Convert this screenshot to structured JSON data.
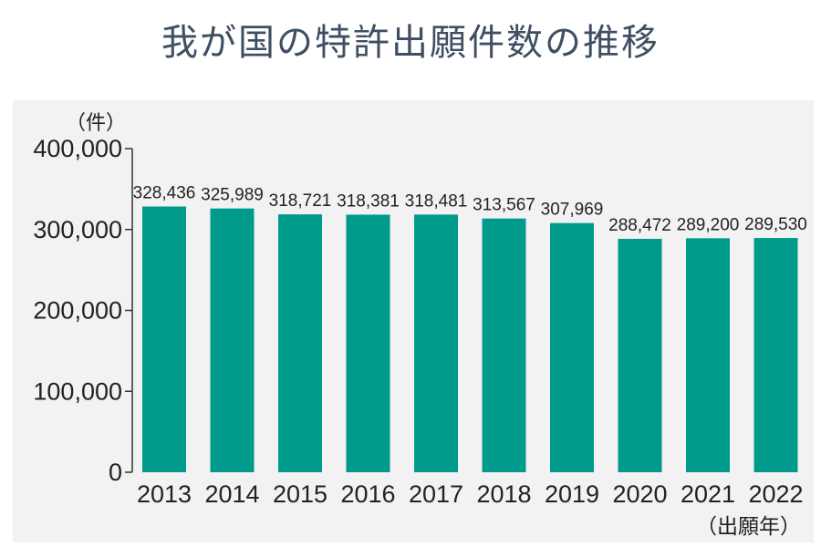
{
  "title": "我が国の特許出願件数の推移",
  "colors": {
    "bar": "#009a8d",
    "panel": "#f2f2f2",
    "title": "#3f4f63"
  },
  "chart_data": {
    "type": "bar",
    "title": "我が国の特許出願件数の推移",
    "ylabel": "（件）",
    "xlabel": "（出願年）",
    "ylim": [
      0,
      400000
    ],
    "yticks": [
      0,
      100000,
      200000,
      300000,
      400000
    ],
    "ytick_labels": [
      "0",
      "100,000",
      "200,000",
      "300,000",
      "400,000"
    ],
    "categories": [
      "2013",
      "2014",
      "2015",
      "2016",
      "2017",
      "2018",
      "2019",
      "2020",
      "2021",
      "2022"
    ],
    "values": [
      328436,
      325989,
      318721,
      318381,
      318481,
      313567,
      307969,
      288472,
      289200,
      289530
    ],
    "data_labels": [
      "328,436",
      "325,989",
      "318,721",
      "318,381",
      "318,481",
      "313,567",
      "307,969",
      "288,472",
      "289,200",
      "289,530"
    ],
    "grid": false,
    "legend": "none"
  }
}
